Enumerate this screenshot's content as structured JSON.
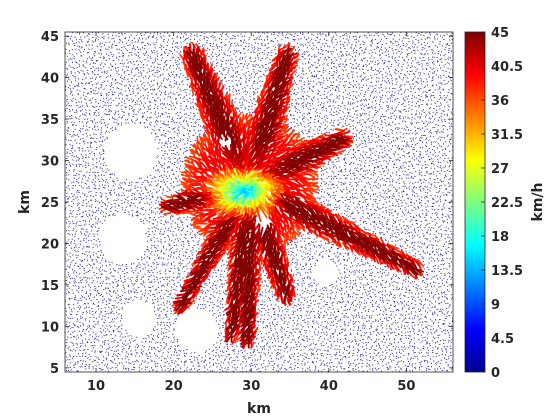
{
  "chart_data": {
    "type": "vector-field",
    "xlabel": "km",
    "ylabel": "km",
    "xlim": [
      6,
      56
    ],
    "ylim": [
      4.5,
      45.5
    ],
    "xticks": [
      10,
      20,
      30,
      40,
      50
    ],
    "yticks": [
      5,
      10,
      15,
      20,
      25,
      30,
      35,
      40,
      45
    ],
    "grid": false,
    "colorbar": {
      "label": "km/h",
      "min": 0,
      "max": 45,
      "ticks": [
        "0",
        "4.5",
        "9",
        "13.5",
        "18",
        "22.5",
        "27",
        "31.5",
        "36",
        "40.5",
        "45"
      ],
      "colormap": "jet"
    },
    "field": {
      "center": [
        29.8,
        27.0
      ],
      "background_speed": 0.5,
      "peak_speed": 45,
      "inner_calm_center": [
        30.4,
        25.0
      ],
      "inner_low_speed": 16,
      "lobes": [
        {
          "end": [
            22.5,
            42.5
          ],
          "width": 3.6
        },
        {
          "end": [
            34.5,
            42.5
          ],
          "width": 3.4
        },
        {
          "end": [
            41.5,
            32.5
          ],
          "width": 3.2
        },
        {
          "end": [
            51.0,
            17.0
          ],
          "width": 2.6
        },
        {
          "end": [
            34.5,
            14.0
          ],
          "width": 3.0
        },
        {
          "end": [
            29.5,
            8.5
          ],
          "width": 2.5
        },
        {
          "end": [
            27.5,
            9.0
          ],
          "width": 2.2
        },
        {
          "end": [
            21.0,
            12.5
          ],
          "width": 2.2
        },
        {
          "end": [
            19.5,
            24.5
          ],
          "width": 2.6
        }
      ],
      "holes": [
        {
          "center": [
            14.5,
            31.0
          ],
          "radius": 3.4
        },
        {
          "center": [
            13.5,
            20.5
          ],
          "radius": 3.0
        },
        {
          "center": [
            15.5,
            11.0
          ],
          "radius": 2.2
        },
        {
          "center": [
            23.0,
            9.5
          ],
          "radius": 2.7
        },
        {
          "center": [
            39.5,
            16.5
          ],
          "radius": 1.6
        },
        {
          "center": [
            31.5,
            22.5
          ],
          "radius": 1.1
        },
        {
          "center": [
            26.5,
            32.0
          ],
          "radius": 0.8
        }
      ]
    }
  }
}
